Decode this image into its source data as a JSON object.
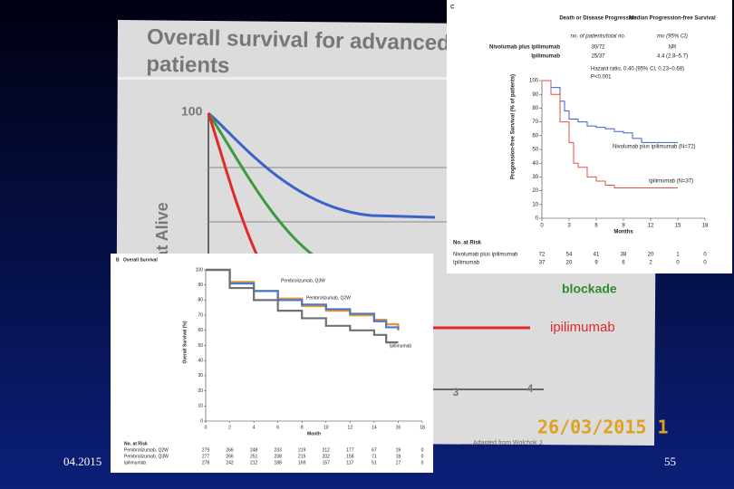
{
  "photo": {
    "title_lines": [
      "Overall survival for advanced",
      "patients"
    ],
    "y_tick": "100",
    "y_label": "at Alive",
    "series_labels": [
      "ipilimumab",
      "blockade"
    ],
    "x_ticks": [
      "3",
      "4"
    ],
    "date_stamp": "26/03/2015 1",
    "source": "Adapted from Wolchok J."
  },
  "footer": {
    "date": "04.2015",
    "page": "55"
  },
  "chart_data": [
    {
      "type": "line",
      "panel_label": "C",
      "table": {
        "headers": [
          "Death or Disease Progression",
          "Median Progression-free Survival"
        ],
        "subheaders": [
          "no. of patients/total no.",
          "mo (95% CI)"
        ],
        "rows": [
          [
            "Nivolumab plus ipilimumab",
            "30/72",
            "NR"
          ],
          [
            "Ipilimumab",
            "25/37",
            "4.4 (2.8–5.7)"
          ]
        ],
        "notes": [
          "Hazard ratio, 0.40 (95% CI, 0.23–0.68)",
          "P<0.001"
        ]
      },
      "y_label": "Progression-free Survival (% of patients)",
      "x_label": "Months",
      "xlim": [
        0,
        18
      ],
      "xticks": [
        0,
        3,
        6,
        9,
        12,
        15,
        18
      ],
      "ylim": [
        0,
        100
      ],
      "yticks": [
        0,
        10,
        20,
        30,
        40,
        50,
        60,
        70,
        80,
        90,
        100
      ],
      "series": [
        {
          "name": "Nivolumab plus ipilimumab (N=72)",
          "color": "#3a5fcd",
          "x": [
            0,
            1,
            2,
            2.5,
            3,
            4,
            5,
            6,
            7,
            8,
            9,
            10,
            11,
            12,
            15
          ],
          "values": [
            100,
            95,
            85,
            78,
            72,
            70,
            67,
            66,
            65,
            63,
            62,
            58,
            55,
            55,
            55
          ]
        },
        {
          "name": "Ipilimumab (N=37)",
          "color": "#e0504a",
          "x": [
            0,
            1,
            2,
            3,
            3.5,
            4,
            5,
            6,
            7,
            8,
            9,
            10,
            12,
            15
          ],
          "values": [
            100,
            90,
            70,
            55,
            40,
            37,
            30,
            27,
            24,
            22,
            22,
            22,
            22,
            22
          ]
        }
      ],
      "risk": {
        "title": "No. at Risk",
        "rows": [
          {
            "name": "Nivolumab plus ipilimumab",
            "values": [
              72,
              54,
              41,
              38,
              20,
              1,
              0
            ]
          },
          {
            "name": "Ipilimumab",
            "values": [
              37,
              20,
              9,
              6,
              2,
              0,
              0
            ]
          }
        ]
      }
    },
    {
      "type": "line",
      "panel_label": "B",
      "title": "Overall Survival",
      "y_label": "Overall Survival (%)",
      "x_label": "Month",
      "xlim": [
        0,
        18
      ],
      "xticks": [
        0,
        2,
        4,
        6,
        8,
        10,
        12,
        14,
        16,
        18
      ],
      "ylim": [
        0,
        100
      ],
      "yticks": [
        0,
        10,
        20,
        30,
        40,
        50,
        60,
        70,
        80,
        90,
        100
      ],
      "series": [
        {
          "name": "Pembrolizumab, Q3W",
          "color": "#e8962e",
          "x": [
            0,
            2,
            4,
            6,
            8,
            10,
            12,
            14,
            15,
            16
          ],
          "values": [
            100,
            92,
            86,
            81,
            76,
            73,
            70,
            67,
            64,
            62
          ]
        },
        {
          "name": "Pembrolizumab, Q2W",
          "color": "#4a78c8",
          "x": [
            0,
            2,
            4,
            6,
            8,
            10,
            12,
            14,
            15,
            16
          ],
          "values": [
            100,
            91,
            86,
            80,
            77,
            74,
            71,
            66,
            62,
            60
          ]
        },
        {
          "name": "Ipilimumab",
          "color": "#707070",
          "x": [
            0,
            2,
            4,
            6,
            8,
            10,
            12,
            14,
            15,
            16
          ],
          "values": [
            100,
            88,
            80,
            73,
            68,
            63,
            60,
            57,
            52,
            52
          ]
        }
      ],
      "risk": {
        "title": "No. at Risk",
        "rows": [
          {
            "name": "Pembrolizumab, Q2W",
            "values": [
              279,
              266,
              248,
              233,
              219,
              212,
              177,
              67,
              19,
              0
            ]
          },
          {
            "name": "Pembrolizumab, Q3W",
            "values": [
              277,
              266,
              251,
              238,
              215,
              202,
              158,
              71,
              18,
              0
            ]
          },
          {
            "name": "Ipilimumab",
            "values": [
              278,
              242,
              212,
              188,
              169,
              157,
              117,
              51,
              17,
              0
            ]
          }
        ]
      }
    }
  ]
}
